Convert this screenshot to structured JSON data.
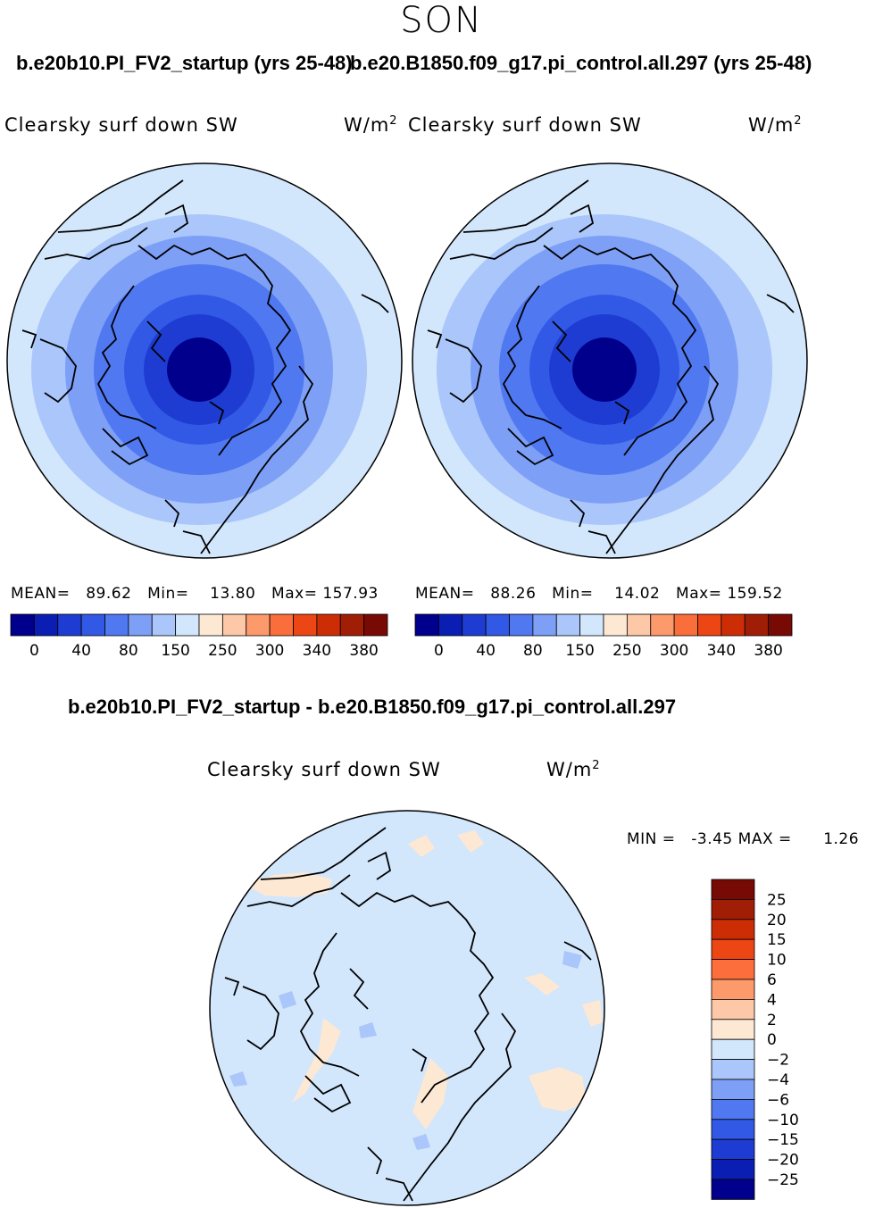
{
  "page": {
    "season": "SON",
    "left_run_title": "b.e20b10.PI_FV2_startup (yrs 25-48)",
    "right_run_title": "b.e20.B1850.f09_g17.pi_control.all.297 (yrs 25-48)",
    "diff_title": "b.e20b10.PI_FV2_startup - b.e20.B1850.f09_g17.pi_control.all.297"
  },
  "colors": {
    "abs_scale": [
      "#00008c",
      "#0a1eb4",
      "#1e3cd2",
      "#3258e6",
      "#5078f0",
      "#7d9ff6",
      "#aac6fa",
      "#d2e6fc",
      "#fde8d4",
      "#fdc8a8",
      "#fc9a6c",
      "#fa6e3c",
      "#eb4614",
      "#cd2d05",
      "#a01e05",
      "#780a05"
    ],
    "diff_scale": [
      "#780a05",
      "#a01e05",
      "#cd2d05",
      "#eb4614",
      "#fc6e3c",
      "#fc9a6c",
      "#fdc8a8",
      "#fde8d4",
      "#d2e6fc",
      "#aac6fa",
      "#7d9ff6",
      "#5078f0",
      "#3258e6",
      "#1e3cd2",
      "#0a1eb4",
      "#00008c"
    ]
  },
  "chart_data": [
    {
      "type": "heatmap",
      "projection": "north-polar-stereographic",
      "title": "Clearsky surf down SW",
      "units": "W/m",
      "units_exp": "2",
      "stats": {
        "mean_label": "MEAN=",
        "mean": "89.62",
        "min_label": "Min=",
        "min": "13.80",
        "max_label": "Max=",
        "max": "157.93"
      },
      "colorbar_ticks": [
        "0",
        "40",
        "80",
        "150",
        "250",
        "300",
        "340",
        "380"
      ],
      "approx_rings": [
        {
          "level_index": 0,
          "value": 15
        },
        {
          "level_index": 2,
          "value": 45
        },
        {
          "level_index": 3,
          "value": 65
        },
        {
          "level_index": 4,
          "value": 85
        },
        {
          "level_index": 5,
          "value": 105
        },
        {
          "level_index": 6,
          "value": 130
        },
        {
          "level_index": 7,
          "value": 150
        }
      ]
    },
    {
      "type": "heatmap",
      "projection": "north-polar-stereographic",
      "title": "Clearsky surf down SW",
      "units": "W/m",
      "units_exp": "2",
      "stats": {
        "mean_label": "MEAN=",
        "mean": "88.26",
        "min_label": "Min=",
        "min": "14.02",
        "max_label": "Max=",
        "max": "159.52"
      },
      "colorbar_ticks": [
        "0",
        "40",
        "80",
        "150",
        "250",
        "300",
        "340",
        "380"
      ],
      "approx_rings": [
        {
          "level_index": 0,
          "value": 15
        },
        {
          "level_index": 2,
          "value": 45
        },
        {
          "level_index": 3,
          "value": 65
        },
        {
          "level_index": 4,
          "value": 85
        },
        {
          "level_index": 5,
          "value": 105
        },
        {
          "level_index": 6,
          "value": 130
        },
        {
          "level_index": 7,
          "value": 150
        }
      ]
    },
    {
      "type": "heatmap",
      "projection": "north-polar-stereographic",
      "title": "Clearsky surf down SW",
      "units": "W/m",
      "units_exp": "2",
      "stats": {
        "min_label": "MIN =",
        "min": "-3.45",
        "max_label": "MAX =",
        "max": "1.26"
      },
      "colorbar_labels": [
        "25",
        "20",
        "15",
        "10",
        "6",
        "4",
        "2",
        "0",
        "−2",
        "−4",
        "−6",
        "−10",
        "−15",
        "−20",
        "−25"
      ]
    }
  ]
}
